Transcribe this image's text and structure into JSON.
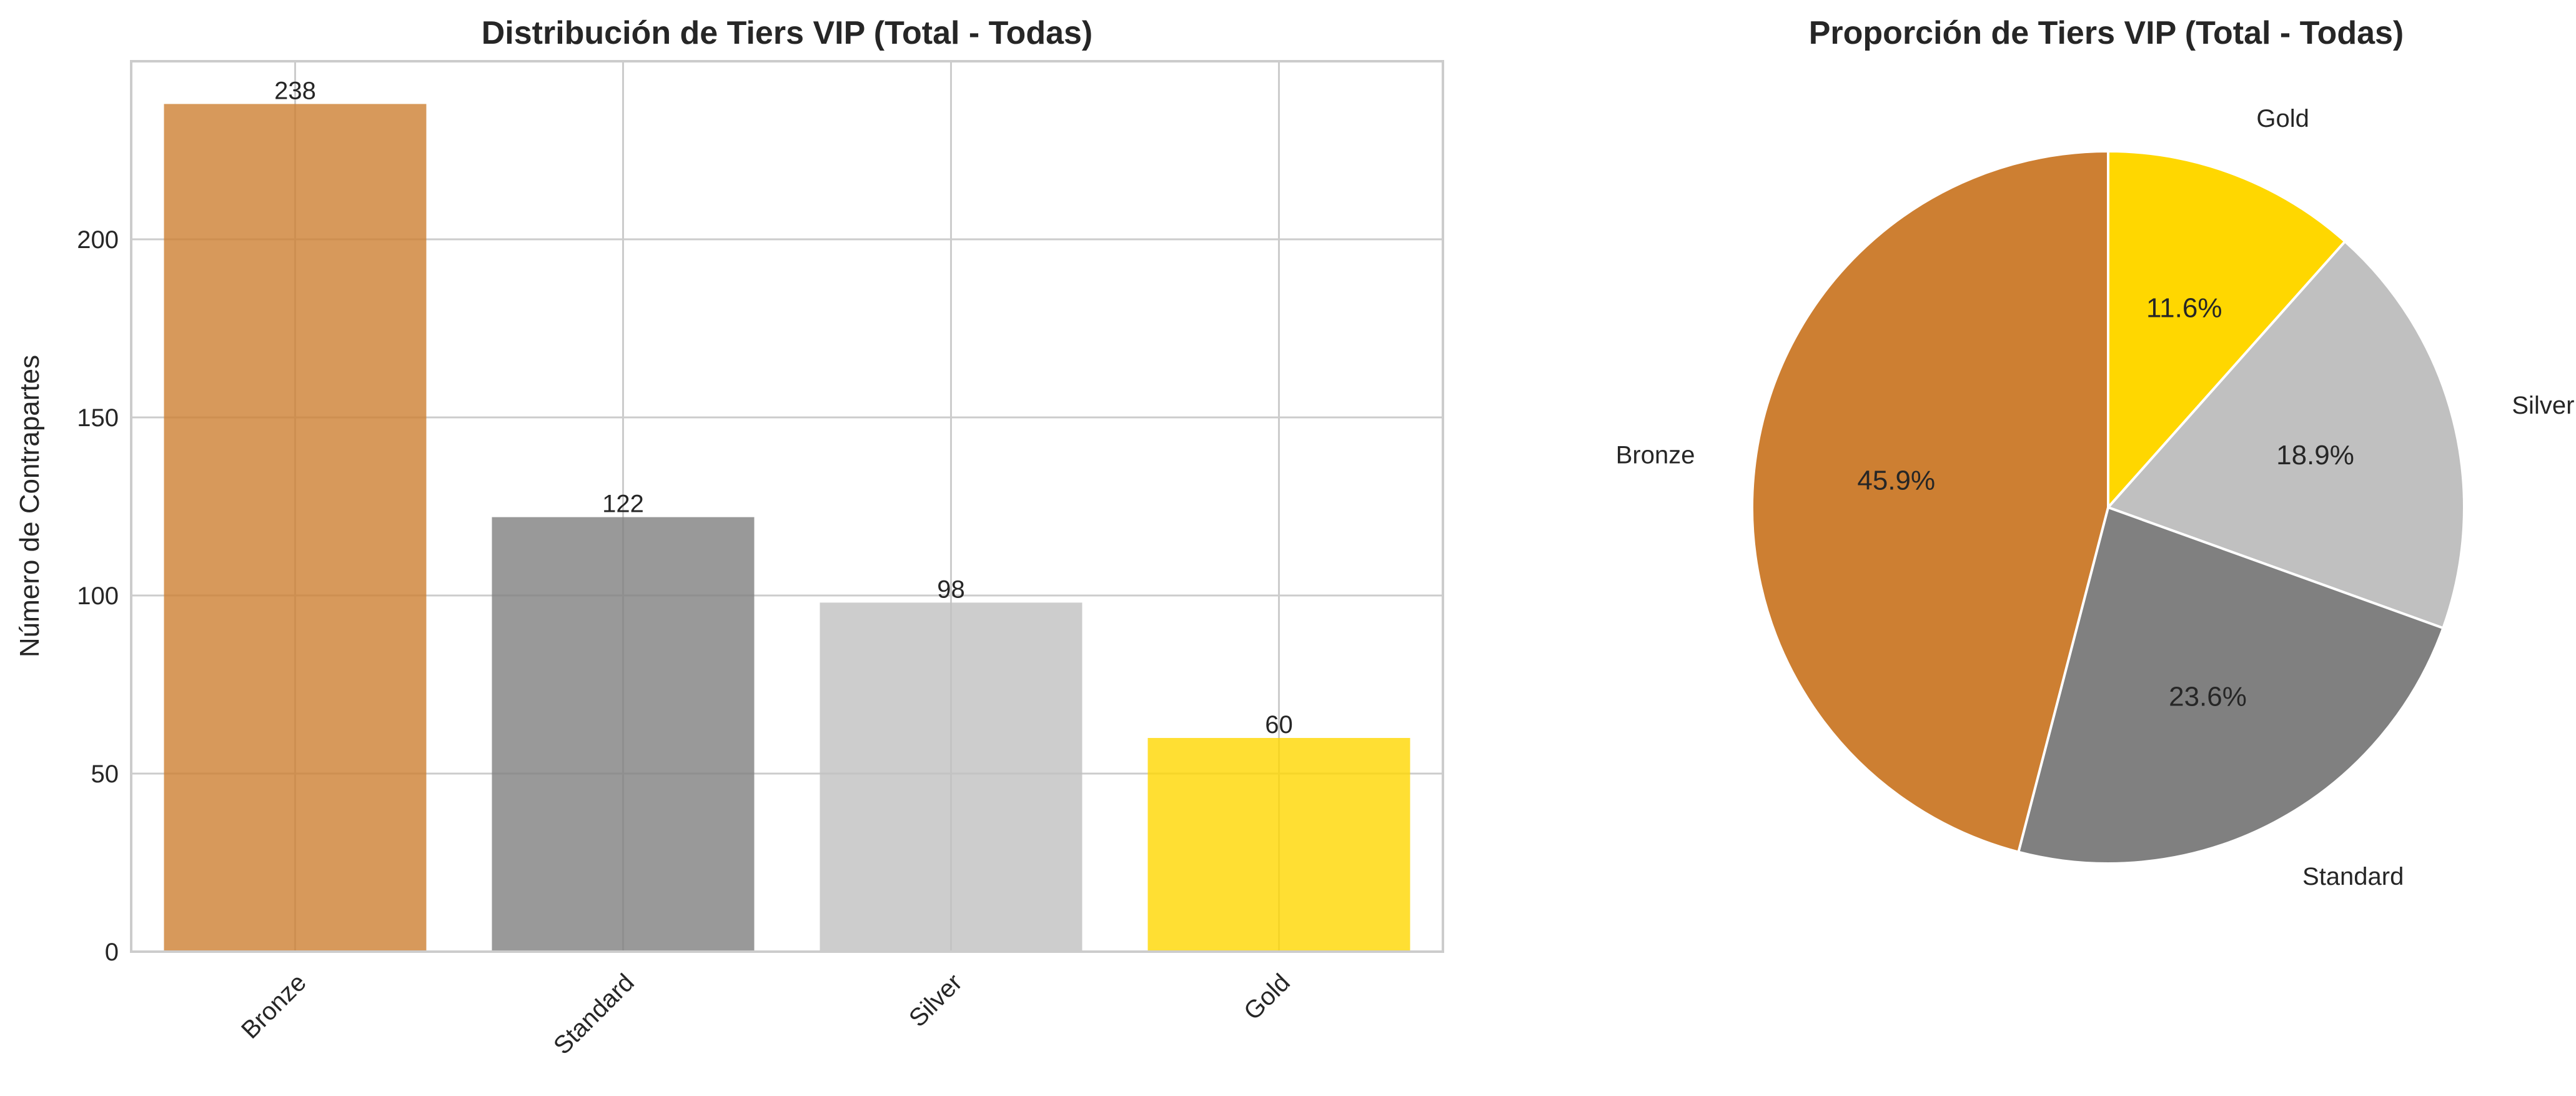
{
  "chart_data": [
    {
      "type": "bar",
      "title": "Distribución de Tiers VIP (Total - Todas)",
      "xlabel": "",
      "ylabel": "Número de Contrapartes",
      "categories": [
        "Bronze",
        "Standard",
        "Silver",
        "Gold"
      ],
      "values": [
        238,
        122,
        98,
        60
      ],
      "data_labels": [
        "238",
        "122",
        "98",
        "60"
      ],
      "colors": [
        "#CD7F32",
        "#808080",
        "#C0C0C0",
        "#FFD700"
      ],
      "ylim": [
        0,
        250
      ],
      "yticks": [
        "0",
        "50",
        "100",
        "150",
        "200"
      ],
      "grid": true,
      "legend": "none"
    },
    {
      "type": "pie",
      "title": "Proporción de Tiers VIP (Total - Todas)",
      "labels": [
        "Gold",
        "Silver",
        "Standard",
        "Bronze"
      ],
      "values": [
        60,
        98,
        122,
        238
      ],
      "percent_labels": [
        "11.6%",
        "18.9%",
        "23.6%",
        "45.9%"
      ],
      "colors": [
        "#FFD700",
        "#C0C0C0",
        "#808080",
        "#CD7F32"
      ],
      "start_angle": 90,
      "direction": "clockwise",
      "legend": "none"
    }
  ]
}
